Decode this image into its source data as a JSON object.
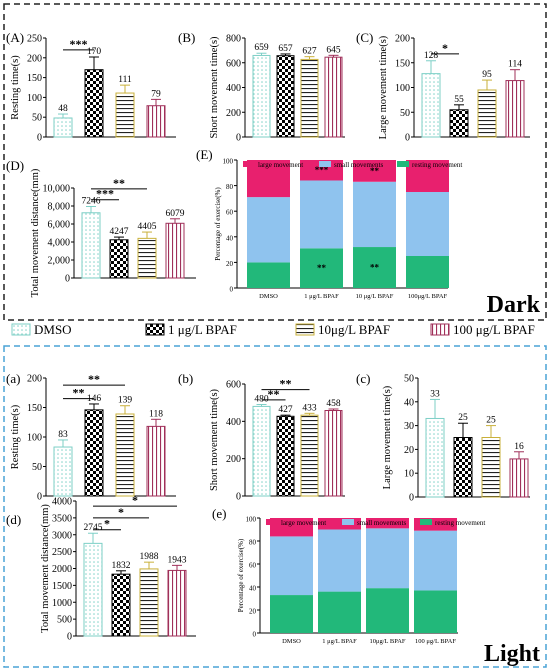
{
  "colors": {
    "dmso": "#7ccfc6",
    "bpaf1": "#000000",
    "bpaf10": "#c9b03a",
    "bpaf100": "#a0305a",
    "large": "#e8206e",
    "small": "#8fc3ee",
    "resting": "#22b87a",
    "dark_border": "#222222",
    "light_border": "#4aa3d6",
    "light_band": "#c9dff5"
  },
  "sections": {
    "dark": "Dark",
    "light": "Light"
  },
  "legend": [
    {
      "label": "DMSO",
      "pattern": "dots",
      "color": "#7ccfc6"
    },
    {
      "label": "1 μg/L BPAF",
      "pattern": "checker",
      "color": "#000000"
    },
    {
      "label": "10μg/L BPAF",
      "pattern": "hlines",
      "color": "#c9b03a"
    },
    {
      "label": "100 μg/L BPAF",
      "pattern": "vlines",
      "color": "#a0305a"
    }
  ],
  "chart_data": [
    {
      "id": "A",
      "panel": "(A)",
      "type": "bar",
      "ylabel": "Resting time(s)",
      "ylim": [
        0,
        250
      ],
      "ticks": [
        0,
        50,
        100,
        150,
        200,
        250
      ],
      "categories": [
        "DMSO",
        "1 μg/L BPAF",
        "10μg/L BPAF",
        "100 μg/L BPAF"
      ],
      "values": [
        48,
        170,
        111,
        79
      ],
      "value_labels": [
        "48",
        "170",
        "111",
        "79"
      ],
      "errors": [
        10,
        32,
        20,
        16
      ],
      "significance": [
        {
          "from": 0,
          "to": 1,
          "label": "***",
          "y": 220
        }
      ]
    },
    {
      "id": "B",
      "panel": "(B)",
      "type": "bar",
      "ylabel": "Short movement time(s)",
      "ylim": [
        0,
        800
      ],
      "ticks": [
        0,
        200,
        400,
        600,
        800
      ],
      "categories": [
        "DMSO",
        "1 μg/L BPAF",
        "10μg/L BPAF",
        "100 μg/L BPAF"
      ],
      "values": [
        659,
        657,
        627,
        645
      ],
      "value_labels": [
        "659",
        "657",
        "627",
        "645"
      ],
      "errors": [
        18,
        14,
        22,
        15
      ],
      "significance": []
    },
    {
      "id": "C",
      "panel": "(C)",
      "type": "bar",
      "ylabel": "Large movement time(s)",
      "ylim": [
        0,
        200
      ],
      "ticks": [
        0,
        50,
        100,
        150,
        200
      ],
      "categories": [
        "DMSO",
        "1 μg/L BPAF",
        "10μg/L BPAF",
        "100 μg/L BPAF"
      ],
      "values": [
        128,
        55,
        95,
        114
      ],
      "value_labels": [
        "128",
        "55",
        "95",
        "114"
      ],
      "errors": [
        26,
        10,
        20,
        22
      ],
      "significance": [
        {
          "from": 0,
          "to": 1,
          "label": "*",
          "y": 168
        }
      ]
    },
    {
      "id": "D",
      "panel": "(D)",
      "type": "bar",
      "ylabel": "Total movement distance(mm)",
      "ylim": [
        0,
        10000
      ],
      "ticks": [
        0,
        2000,
        4000,
        6000,
        8000,
        10000
      ],
      "tick_labels": [
        "0",
        "2,000",
        "4,000",
        "6,000",
        "8,000",
        "10,000"
      ],
      "categories": [
        "DMSO",
        "1 μg/L BPAF",
        "10μg/L BPAF",
        "100 μg/L BPAF"
      ],
      "values": [
        7246,
        4247,
        4405,
        6079
      ],
      "value_labels": [
        "7246",
        "4247",
        "4405",
        "6079"
      ],
      "errors": [
        700,
        300,
        700,
        500
      ],
      "significance": [
        {
          "from": 0,
          "to": 1,
          "label": "***",
          "y": 8700
        },
        {
          "from": 0,
          "to": 2,
          "label": "**",
          "y": 9900
        }
      ]
    },
    {
      "id": "E",
      "panel": "(E)",
      "type": "stacked_bar",
      "ylabel": "Percentage of exercise(%)",
      "ylim": [
        0,
        100
      ],
      "ticks": [
        0,
        20,
        40,
        60,
        80,
        100
      ],
      "categories": [
        "DMSO",
        "1 μg/L BPAF",
        "10 μg/L BPAF",
        "100μg/L BPAF"
      ],
      "legend": [
        "large movement",
        "small movements",
        "resting movement"
      ],
      "resting": [
        20,
        31,
        32,
        25
      ],
      "small": [
        51,
        53,
        51,
        50
      ],
      "large": [
        29,
        16,
        17,
        25
      ],
      "marks": [
        {
          "cat": 1,
          "seg": "large",
          "label": "***"
        },
        {
          "cat": 2,
          "seg": "large",
          "label": "**"
        },
        {
          "cat": 1,
          "seg": "resting",
          "label": "**"
        },
        {
          "cat": 2,
          "seg": "resting",
          "label": "**"
        }
      ]
    },
    {
      "id": "a",
      "panel": "(a)",
      "type": "bar",
      "ylabel": "Resting time(s)",
      "ylim": [
        0,
        200
      ],
      "ticks": [
        0,
        50,
        100,
        150,
        200
      ],
      "categories": [
        "DMSO",
        "1 μg/L BPAF",
        "10μg/L BPAF",
        "100 μg/L BPAF"
      ],
      "values": [
        83,
        146,
        139,
        118
      ],
      "value_labels": [
        "83",
        "146",
        "139",
        "118"
      ],
      "errors": [
        12,
        10,
        14,
        12
      ],
      "significance": [
        {
          "from": 0,
          "to": 1,
          "label": "**",
          "y": 165
        },
        {
          "from": 0,
          "to": 2,
          "label": "**",
          "y": 188
        }
      ]
    },
    {
      "id": "b",
      "panel": "(b)",
      "type": "bar",
      "ylabel": "Short movement time(s)",
      "ylim": [
        0,
        600
      ],
      "ticks": [
        0,
        200,
        400,
        600
      ],
      "categories": [
        "DMSO",
        "1 μg/L BPAF",
        "10μg/L BPAF",
        "100 μg/L BPAF"
      ],
      "values": [
        480,
        427,
        433,
        458
      ],
      "value_labels": [
        "480",
        "427",
        "433",
        "458"
      ],
      "errors": [
        10,
        6,
        10,
        8
      ],
      "significance": [
        {
          "from": 0,
          "to": 1,
          "label": "**",
          "y": 515
        },
        {
          "from": 0,
          "to": 2,
          "label": "**",
          "y": 570
        }
      ]
    },
    {
      "id": "c",
      "panel": "(c)",
      "type": "bar",
      "ylabel": "Large movement time(s)",
      "ylim": [
        0,
        50
      ],
      "ticks": [
        0,
        10,
        20,
        30,
        40,
        50
      ],
      "categories": [
        "DMSO",
        "1 μg/L BPAF",
        "10μg/L BPAF",
        "100 μg/L BPAF"
      ],
      "values": [
        33,
        25,
        25,
        16
      ],
      "value_labels": [
        "33",
        "25",
        "25",
        "16"
      ],
      "errors": [
        8,
        6,
        5,
        3
      ],
      "significance": []
    },
    {
      "id": "d",
      "panel": "(d)",
      "type": "bar",
      "ylabel": "Total movement distance(mm)",
      "ylim": [
        0,
        4000
      ],
      "ticks": [
        0,
        500,
        1000,
        1500,
        2000,
        2500,
        3000,
        3500,
        4000
      ],
      "categories": [
        "DMSO",
        "1 μg/L BPAF",
        "10μg/L BPAF",
        "100 μg/L BPAF"
      ],
      "values": [
        2745,
        1832,
        1988,
        1943
      ],
      "value_labels": [
        "2745",
        "1832",
        "1988",
        "1943"
      ],
      "errors": [
        300,
        100,
        200,
        150
      ],
      "significance": [
        {
          "from": 0,
          "to": 1,
          "label": "*",
          "y": 3150
        },
        {
          "from": 0,
          "to": 2,
          "label": "*",
          "y": 3500
        },
        {
          "from": 0,
          "to": 3,
          "label": "*",
          "y": 3850
        }
      ]
    },
    {
      "id": "e",
      "panel": "(e)",
      "type": "stacked_bar",
      "ylabel": "Percentage of exercise(%)",
      "ylim": [
        0,
        100
      ],
      "ticks": [
        0,
        20,
        40,
        60,
        80,
        100
      ],
      "categories": [
        "DMSO",
        "1 μg/L BPAF",
        "10μg/L BPAF",
        "100 μg/L BPAF"
      ],
      "legend": [
        "large movement",
        "small movements",
        "resting movement"
      ],
      "resting": [
        33,
        36,
        39,
        37
      ],
      "small": [
        51,
        54,
        52,
        52
      ],
      "large": [
        16,
        10,
        9,
        11
      ],
      "marks": []
    }
  ]
}
